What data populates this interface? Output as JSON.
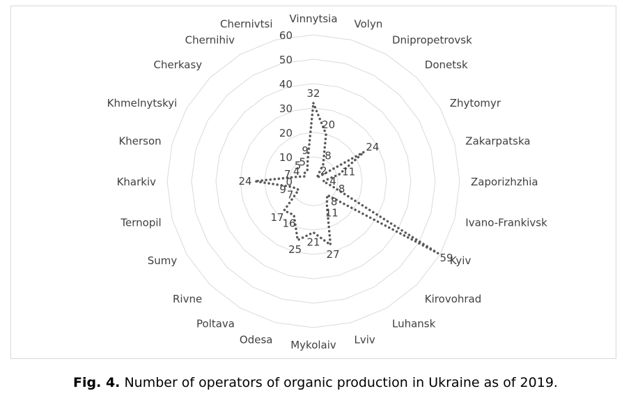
{
  "chart_data": {
    "type": "radar",
    "categories": [
      "Vinnytsia",
      "Volyn",
      "Dnipropetrovsk",
      "Donetsk",
      "Zhytomyr",
      "Zakarpatska",
      "Zaporizhzhia",
      "Ivano-Frankivsk",
      "Kyiv",
      "Kirovohrad",
      "Luhansk",
      "Lviv",
      "Mykolaiv",
      "Odesa",
      "Poltava",
      "Rivne",
      "Sumy",
      "Ternopil",
      "Kharkiv",
      "Kherson",
      "Khmelnytskyi",
      "Cherkasy",
      "Chernihiv",
      "Chernivtsi"
    ],
    "series": [
      {
        "values": [
          32,
          20,
          8,
          2,
          24,
          11,
          4,
          8,
          59,
          8,
          11,
          27,
          21,
          25,
          16,
          17,
          7,
          9,
          24,
          7,
          4,
          5,
          5,
          9
        ]
      }
    ],
    "data_labels": [
      "32",
      "20",
      "8",
      "2",
      "24",
      "11",
      "4",
      "8",
      "59",
      "8",
      "11",
      "27",
      "21",
      "25",
      "16",
      "17",
      "7",
      "9",
      "24",
      "7",
      "4",
      "5",
      "5",
      "9"
    ],
    "rlim": [
      0,
      60
    ],
    "r_ticks": [
      0,
      10,
      20,
      30,
      40,
      50,
      60
    ],
    "r_tick_labels": [
      "0",
      "10",
      "20",
      "30",
      "40",
      "50",
      "60"
    ],
    "grid": true,
    "line_style": "dotted",
    "series_color": "#595959",
    "grid_color": "#d9d9d9"
  },
  "caption": {
    "prefix": "Fig. 4.",
    "text": " Number of operators of organic production in Ukraine as of 2019."
  }
}
